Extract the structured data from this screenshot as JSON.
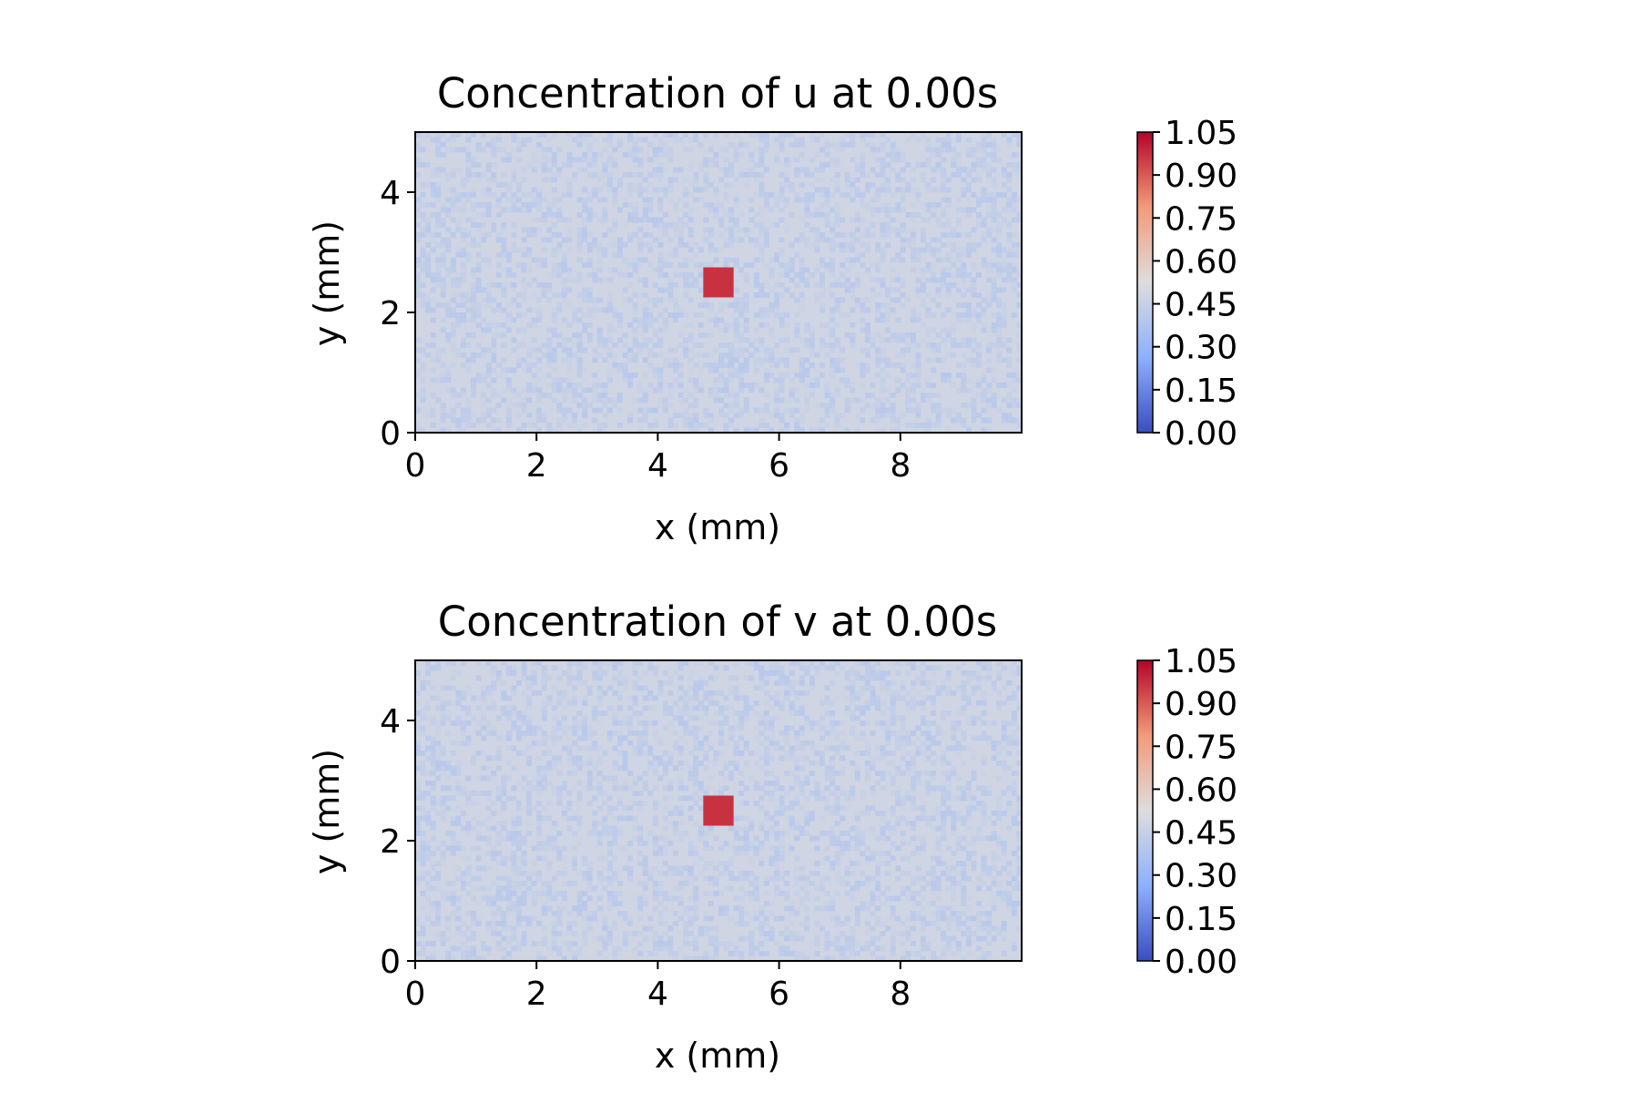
{
  "figure": {
    "background": "#ffffff"
  },
  "chart_data": [
    {
      "type": "heatmap",
      "title": "Concentration of u at 0.00s",
      "xlabel": "x (mm)",
      "ylabel": "y (mm)",
      "xlim": [
        0,
        10
      ],
      "ylim": [
        0,
        5
      ],
      "xticks": [
        0,
        2,
        4,
        6,
        8
      ],
      "yticks": [
        0,
        2,
        4
      ],
      "background_value_range": [
        0.35,
        0.55
      ],
      "patch": {
        "x_range": [
          4.75,
          5.25
        ],
        "y_range": [
          2.25,
          2.75
        ],
        "value": 0.97
      },
      "colorbar": {
        "colormap": "coolwarm",
        "vmin": 0.0,
        "vmax": 1.05,
        "ticks": [
          "0.00",
          "0.15",
          "0.30",
          "0.45",
          "0.60",
          "0.75",
          "0.90",
          "1.05"
        ]
      },
      "grid": false
    },
    {
      "type": "heatmap",
      "title": "Concentration of v at 0.00s",
      "xlabel": "x (mm)",
      "ylabel": "y (mm)",
      "xlim": [
        0,
        10
      ],
      "ylim": [
        0,
        5
      ],
      "xticks": [
        0,
        2,
        4,
        6,
        8
      ],
      "yticks": [
        0,
        2,
        4
      ],
      "background_value_range": [
        0.35,
        0.55
      ],
      "patch": {
        "x_range": [
          4.75,
          5.25
        ],
        "y_range": [
          2.25,
          2.75
        ],
        "value": 0.97
      },
      "colorbar": {
        "colormap": "coolwarm",
        "vmin": 0.0,
        "vmax": 1.05,
        "ticks": [
          "0.00",
          "0.15",
          "0.30",
          "0.45",
          "0.60",
          "0.75",
          "0.90",
          "1.05"
        ]
      },
      "grid": false
    }
  ]
}
